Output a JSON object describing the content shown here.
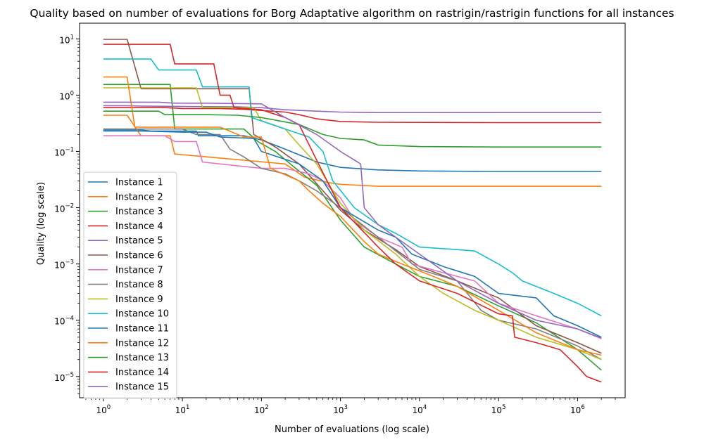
{
  "chart_data": {
    "type": "line",
    "title": "Quality based on number of evaluations for Borg Adaptative algorithm on rastrigin/rastrigin functions for all instances",
    "xlabel": "Number of evaluations (log scale)",
    "ylabel": "Quality (log scale)",
    "xscale": "log",
    "yscale": "log",
    "xlim": [
      0.5,
      4000000
    ],
    "ylim": [
      4.2e-06,
      19
    ],
    "xticks": [
      {
        "base": "10",
        "exp": "0"
      },
      {
        "base": "10",
        "exp": "1"
      },
      {
        "base": "10",
        "exp": "2"
      },
      {
        "base": "10",
        "exp": "3"
      },
      {
        "base": "10",
        "exp": "4"
      },
      {
        "base": "10",
        "exp": "5"
      },
      {
        "base": "10",
        "exp": "6"
      }
    ],
    "yticks": [
      {
        "base": "10",
        "exp": "−5"
      },
      {
        "base": "10",
        "exp": "−4"
      },
      {
        "base": "10",
        "exp": "−3"
      },
      {
        "base": "10",
        "exp": "−2"
      },
      {
        "base": "10",
        "exp": "−1"
      },
      {
        "base": "10",
        "exp": "0"
      },
      {
        "base": "10",
        "exp": "1"
      }
    ],
    "grid": false,
    "legend_position": "lower-left",
    "series": [
      {
        "name": "Instance 1",
        "color": "#1f77b4",
        "points": [
          [
            1,
            0.24
          ],
          [
            3,
            0.24
          ],
          [
            4,
            0.23
          ],
          [
            15,
            0.23
          ],
          [
            16,
            0.19
          ],
          [
            60,
            0.19
          ],
          [
            100,
            0.16
          ],
          [
            200,
            0.11
          ],
          [
            500,
            0.065
          ],
          [
            1000,
            0.052
          ],
          [
            3000,
            0.047
          ],
          [
            10000,
            0.045
          ],
          [
            100000,
            0.044
          ],
          [
            2000000,
            0.044
          ]
        ]
      },
      {
        "name": "Instance 2",
        "color": "#ff7f0e",
        "points": [
          [
            1,
            0.44
          ],
          [
            2,
            0.44
          ],
          [
            3,
            0.19
          ],
          [
            7,
            0.19
          ],
          [
            8,
            0.09
          ],
          [
            200,
            0.06
          ],
          [
            350,
            0.035
          ],
          [
            700,
            0.028
          ],
          [
            1000,
            0.026
          ],
          [
            3000,
            0.024
          ],
          [
            10000,
            0.024
          ],
          [
            2000000,
            0.024
          ]
        ]
      },
      {
        "name": "Instance 3",
        "color": "#2ca02c",
        "points": [
          [
            1,
            1.55
          ],
          [
            7,
            1.55
          ],
          [
            8,
            0.25
          ],
          [
            60,
            0.25
          ],
          [
            90,
            0.15
          ],
          [
            150,
            0.1
          ],
          [
            250,
            0.055
          ],
          [
            500,
            0.025
          ],
          [
            1000,
            0.006
          ],
          [
            2000,
            0.002
          ],
          [
            5000,
            0.001
          ],
          [
            10000,
            0.0006
          ],
          [
            30000,
            0.0004
          ],
          [
            100000,
            0.00018
          ],
          [
            300000,
            9e-05
          ],
          [
            1000000,
            3e-05
          ],
          [
            2000000,
            1.3e-05
          ]
        ]
      },
      {
        "name": "Instance 4",
        "color": "#d62728",
        "points": [
          [
            1,
            0.6
          ],
          [
            3,
            0.6
          ],
          [
            6,
            0.6
          ],
          [
            10,
            0.58
          ],
          [
            30,
            0.58
          ],
          [
            60,
            0.56
          ],
          [
            200,
            0.5
          ],
          [
            300,
            0.45
          ],
          [
            500,
            0.38
          ],
          [
            1000,
            0.34
          ],
          [
            3000,
            0.33
          ],
          [
            100000,
            0.325
          ],
          [
            2000000,
            0.325
          ]
        ]
      },
      {
        "name": "Instance 5",
        "color": "#9467bd",
        "points": [
          [
            1,
            0.65
          ],
          [
            2,
            0.65
          ],
          [
            3,
            0.64
          ],
          [
            10,
            0.63
          ],
          [
            50,
            0.62
          ],
          [
            100,
            0.6
          ],
          [
            200,
            0.55
          ],
          [
            500,
            0.52
          ],
          [
            1000,
            0.5
          ],
          [
            3000,
            0.49
          ],
          [
            10000,
            0.49
          ],
          [
            2000000,
            0.49
          ]
        ]
      },
      {
        "name": "Instance 6",
        "color": "#8c564b",
        "points": [
          [
            1,
            9.8
          ],
          [
            2,
            9.8
          ],
          [
            3,
            1.3
          ],
          [
            70,
            1.3
          ],
          [
            80,
            0.2
          ],
          [
            150,
            0.12
          ],
          [
            300,
            0.06
          ],
          [
            600,
            0.02
          ],
          [
            1000,
            0.009
          ],
          [
            2000,
            0.004
          ],
          [
            5000,
            0.0018
          ],
          [
            10000,
            0.0009
          ],
          [
            30000,
            0.0005
          ],
          [
            100000,
            0.00025
          ],
          [
            300000,
            8e-05
          ],
          [
            1000000,
            4e-05
          ],
          [
            2000000,
            2.6e-05
          ]
        ]
      },
      {
        "name": "Instance 7",
        "color": "#e377c2",
        "points": [
          [
            1,
            0.19
          ],
          [
            6,
            0.19
          ],
          [
            8,
            0.15
          ],
          [
            15,
            0.15
          ],
          [
            18,
            0.065
          ],
          [
            30,
            0.06
          ],
          [
            100,
            0.05
          ],
          [
            200,
            0.05
          ],
          [
            400,
            0.04
          ],
          [
            600,
            0.03
          ],
          [
            1000,
            0.015
          ],
          [
            1500,
            0.006
          ],
          [
            3000,
            0.003
          ],
          [
            6000,
            0.002
          ],
          [
            8000,
            0.001
          ],
          [
            20000,
            0.0007
          ],
          [
            50000,
            0.0005
          ],
          [
            100000,
            0.0002
          ],
          [
            300000,
            0.00012
          ],
          [
            1000000,
            7e-05
          ],
          [
            2000000,
            4.7e-05
          ]
        ]
      },
      {
        "name": "Instance 8",
        "color": "#7f7f7f",
        "points": [
          [
            1,
            0.25
          ],
          [
            10,
            0.25
          ],
          [
            15,
            0.2
          ],
          [
            30,
            0.2
          ],
          [
            40,
            0.11
          ],
          [
            60,
            0.08
          ],
          [
            100,
            0.05
          ],
          [
            200,
            0.04
          ],
          [
            300,
            0.03
          ],
          [
            500,
            0.02
          ],
          [
            1000,
            0.01
          ],
          [
            3000,
            0.003
          ],
          [
            10000,
            0.0008
          ],
          [
            30000,
            0.0005
          ],
          [
            60000,
            0.00015
          ],
          [
            100000,
            0.0001
          ],
          [
            300000,
            7e-05
          ],
          [
            1000000,
            3.5e-05
          ],
          [
            2000000,
            2e-05
          ]
        ]
      },
      {
        "name": "Instance 9",
        "color": "#bcbd22",
        "points": [
          [
            1,
            1.35
          ],
          [
            15,
            1.35
          ],
          [
            18,
            0.6
          ],
          [
            80,
            0.6
          ],
          [
            100,
            0.35
          ],
          [
            200,
            0.25
          ],
          [
            300,
            0.13
          ],
          [
            500,
            0.06
          ],
          [
            1000,
            0.012
          ],
          [
            2000,
            0.004
          ],
          [
            5000,
            0.0015
          ],
          [
            10000,
            0.0006
          ],
          [
            20000,
            0.0003
          ],
          [
            50000,
            0.00015
          ],
          [
            100000,
            0.0001
          ],
          [
            300000,
            5e-05
          ],
          [
            1000000,
            3e-05
          ],
          [
            2000000,
            2e-05
          ]
        ]
      },
      {
        "name": "Instance 10",
        "color": "#17becf",
        "points": [
          [
            1,
            4.4
          ],
          [
            4,
            4.4
          ],
          [
            5,
            2.8
          ],
          [
            15,
            2.8
          ],
          [
            18,
            1.4
          ],
          [
            70,
            1.4
          ],
          [
            75,
            0.4
          ],
          [
            200,
            0.25
          ],
          [
            400,
            0.18
          ],
          [
            600,
            0.1
          ],
          [
            800,
            0.03
          ],
          [
            1500,
            0.01
          ],
          [
            3000,
            0.005
          ],
          [
            5000,
            0.0035
          ],
          [
            10000,
            0.002
          ],
          [
            30000,
            0.0018
          ],
          [
            50000,
            0.0017
          ],
          [
            100000,
            0.001
          ],
          [
            150000,
            0.0007
          ],
          [
            200000,
            0.0005
          ],
          [
            500000,
            0.0003
          ],
          [
            1000000,
            0.0002
          ],
          [
            2000000,
            0.00012
          ]
        ]
      },
      {
        "name": "Instance 11",
        "color": "#1f77b4",
        "points": [
          [
            1,
            0.23
          ],
          [
            3,
            0.23
          ],
          [
            10,
            0.22
          ],
          [
            20,
            0.22
          ],
          [
            30,
            0.18
          ],
          [
            80,
            0.17
          ],
          [
            100,
            0.1
          ],
          [
            300,
            0.06
          ],
          [
            600,
            0.03
          ],
          [
            1000,
            0.01
          ],
          [
            3000,
            0.004
          ],
          [
            5000,
            0.003
          ],
          [
            8000,
            0.0015
          ],
          [
            20000,
            0.0009
          ],
          [
            50000,
            0.0006
          ],
          [
            100000,
            0.0003
          ],
          [
            300000,
            0.00025
          ],
          [
            500000,
            0.00012
          ],
          [
            1000000,
            8e-05
          ],
          [
            2000000,
            5e-05
          ]
        ]
      },
      {
        "name": "Instance 12",
        "color": "#ff7f0e",
        "points": [
          [
            1,
            2.1
          ],
          [
            2,
            2.1
          ],
          [
            2.5,
            0.27
          ],
          [
            15,
            0.27
          ],
          [
            30,
            0.27
          ],
          [
            60,
            0.18
          ],
          [
            100,
            0.18
          ],
          [
            130,
            0.05
          ],
          [
            300,
            0.03
          ],
          [
            400,
            0.02
          ],
          [
            600,
            0.012
          ],
          [
            1000,
            0.007
          ],
          [
            2000,
            0.0025
          ],
          [
            3000,
            0.0015
          ],
          [
            6000,
            0.001
          ],
          [
            15000,
            0.0006
          ],
          [
            30000,
            0.0004
          ],
          [
            100000,
            0.00015
          ],
          [
            300000,
            6e-05
          ],
          [
            1000000,
            3e-05
          ],
          [
            2000000,
            2.4e-05
          ]
        ]
      },
      {
        "name": "Instance 13",
        "color": "#2ca02c",
        "points": [
          [
            1,
            0.52
          ],
          [
            5,
            0.52
          ],
          [
            6,
            0.45
          ],
          [
            20,
            0.45
          ],
          [
            50,
            0.44
          ],
          [
            100,
            0.4
          ],
          [
            300,
            0.3
          ],
          [
            600,
            0.2
          ],
          [
            1000,
            0.17
          ],
          [
            2000,
            0.16
          ],
          [
            3000,
            0.13
          ],
          [
            10000,
            0.122
          ],
          [
            100000,
            0.12
          ],
          [
            2000000,
            0.12
          ]
        ]
      },
      {
        "name": "Instance 14",
        "color": "#d62728",
        "points": [
          [
            1,
            8
          ],
          [
            7,
            8
          ],
          [
            8,
            3.6
          ],
          [
            25,
            3.6
          ],
          [
            30,
            1
          ],
          [
            40,
            1
          ],
          [
            45,
            0.6
          ],
          [
            100,
            0.55
          ],
          [
            200,
            0.4
          ],
          [
            300,
            0.3
          ],
          [
            500,
            0.07
          ],
          [
            1000,
            0.01
          ],
          [
            3000,
            0.002
          ],
          [
            5000,
            0.001
          ],
          [
            10000,
            0.0005
          ],
          [
            30000,
            0.0003
          ],
          [
            100000,
            0.00013
          ],
          [
            150000,
            0.00012
          ],
          [
            160000,
            5e-05
          ],
          [
            300000,
            4e-05
          ],
          [
            600000,
            3e-05
          ],
          [
            1000000,
            1.5e-05
          ],
          [
            1300000,
            1e-05
          ],
          [
            2000000,
            8e-06
          ]
        ]
      },
      {
        "name": "Instance 15",
        "color": "#9467bd",
        "points": [
          [
            1,
            0.75
          ],
          [
            5,
            0.75
          ],
          [
            8,
            0.72
          ],
          [
            20,
            0.72
          ],
          [
            100,
            0.7
          ],
          [
            200,
            0.4
          ],
          [
            500,
            0.2
          ],
          [
            1000,
            0.1
          ],
          [
            1800,
            0.06
          ],
          [
            2000,
            0.01
          ],
          [
            3000,
            0.005
          ],
          [
            5000,
            0.003
          ],
          [
            10000,
            0.0015
          ],
          [
            30000,
            0.0005
          ],
          [
            100000,
            0.0002
          ],
          [
            300000,
            0.0001
          ],
          [
            1000000,
            7e-05
          ],
          [
            2000000,
            4.8e-05
          ]
        ]
      }
    ]
  }
}
